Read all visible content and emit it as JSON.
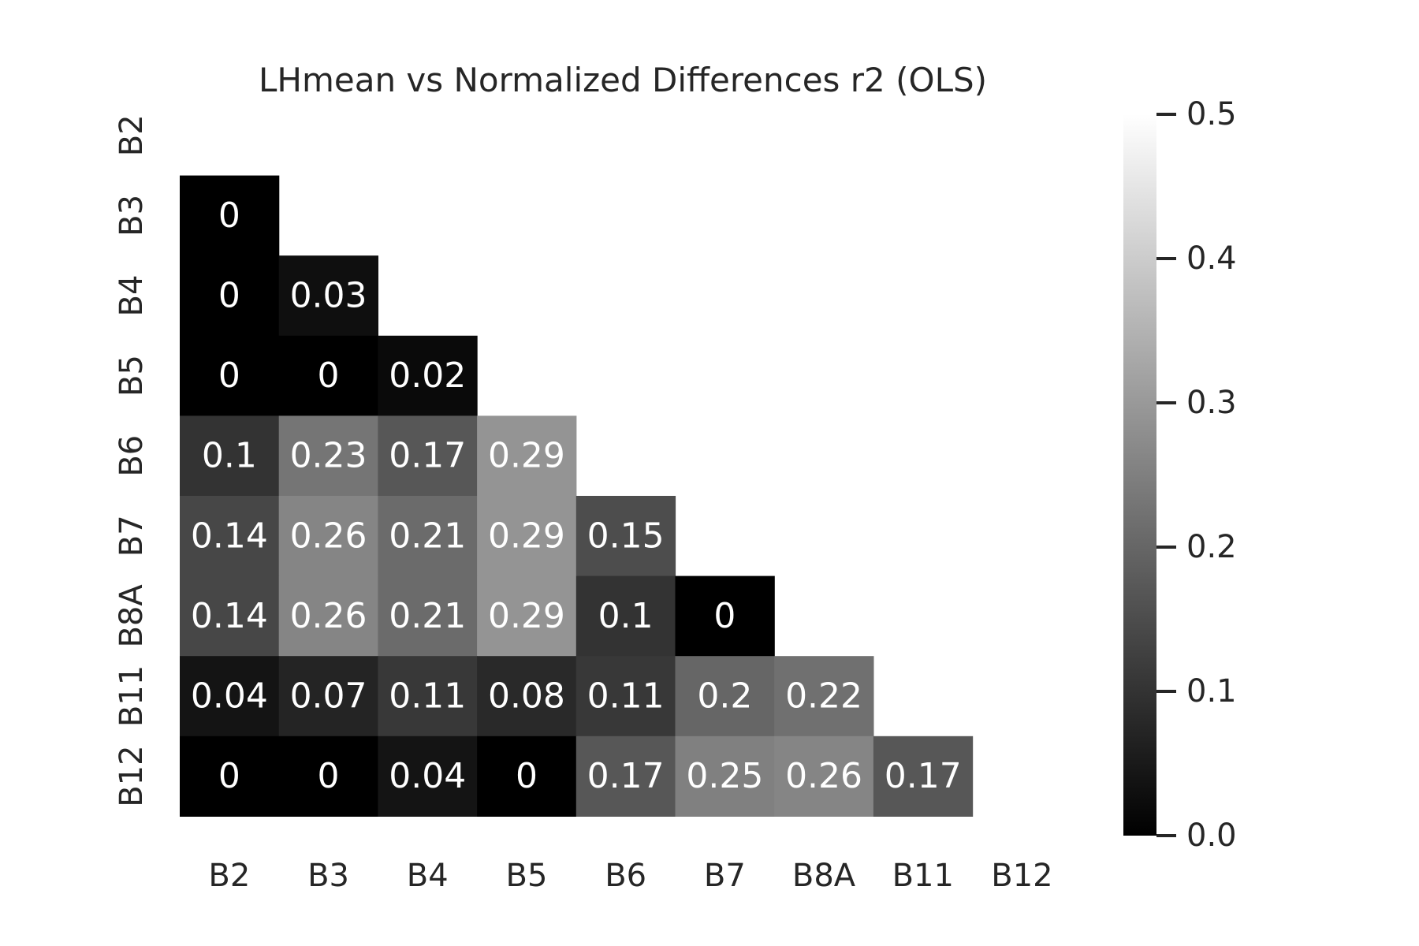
{
  "chart_data": {
    "type": "heatmap",
    "title": "LHmean vs Normalized Differences r2 (OLS)",
    "x_labels": [
      "B2",
      "B3",
      "B4",
      "B5",
      "B6",
      "B7",
      "B8A",
      "B11",
      "B12"
    ],
    "y_labels": [
      "B2",
      "B3",
      "B4",
      "B5",
      "B6",
      "B7",
      "B8A",
      "B11",
      "B12"
    ],
    "mask": "upper-triangle-including-diagonal",
    "values": [
      [
        null,
        null,
        null,
        null,
        null,
        null,
        null,
        null,
        null
      ],
      [
        0,
        null,
        null,
        null,
        null,
        null,
        null,
        null,
        null
      ],
      [
        0,
        0.03,
        null,
        null,
        null,
        null,
        null,
        null,
        null
      ],
      [
        0,
        0,
        0.02,
        null,
        null,
        null,
        null,
        null,
        null
      ],
      [
        0.1,
        0.23,
        0.17,
        0.29,
        null,
        null,
        null,
        null,
        null
      ],
      [
        0.14,
        0.26,
        0.21,
        0.29,
        0.15,
        null,
        null,
        null,
        null
      ],
      [
        0.14,
        0.26,
        0.21,
        0.29,
        0.1,
        0,
        null,
        null,
        null
      ],
      [
        0.04,
        0.07,
        0.11,
        0.08,
        0.11,
        0.2,
        0.22,
        null,
        null
      ],
      [
        0,
        0,
        0.04,
        0,
        0.17,
        0.25,
        0.26,
        0.17,
        null
      ]
    ],
    "colormap": "Greys_r (black to white)",
    "vmin": 0,
    "vmax": 0.5,
    "colorbar": {
      "ticks": [
        "0.0",
        "0.1",
        "0.2",
        "0.3",
        "0.4",
        "0.5"
      ]
    },
    "grid": false,
    "legend": "colorbar-right"
  }
}
